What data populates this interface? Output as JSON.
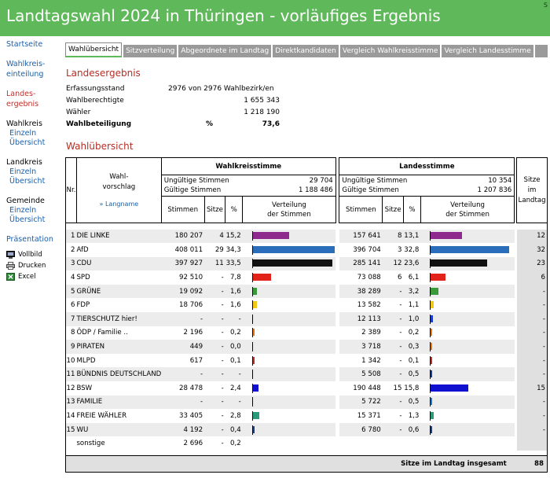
{
  "header": {
    "title": "Landtagswahl 2024 in Thüringen - vorläufiges Ergebnis",
    "corner": "S"
  },
  "sidebar": {
    "startseite": "Startseite",
    "wahlkreiseinteilung": [
      "Wahlkreis-",
      "einteilung"
    ],
    "landesergebnis": [
      "Landes-",
      "ergebnis"
    ],
    "wahlkreis": {
      "title": "Wahlkreis",
      "sub1": "Einzeln",
      "sub2": "Übersicht"
    },
    "landkreis": {
      "title": "Landkreis",
      "sub1": "Einzeln",
      "sub2": "Übersicht"
    },
    "gemeinde": {
      "title": "Gemeinde",
      "sub1": "Einzeln",
      "sub2": "Übersicht"
    },
    "praesentation": "Präsentation",
    "tools": [
      {
        "label": "Vollbild",
        "icon": "monitor-icon"
      },
      {
        "label": "Drucken",
        "icon": "printer-icon"
      },
      {
        "label": "Excel",
        "icon": "excel-icon"
      }
    ]
  },
  "tabs": [
    "Wahlübersicht",
    "Sitzverteilung",
    "Abgeordnete im Landtag",
    "Direktkandidaten",
    "Vergleich Wahlkreisstimme",
    "Vergleich Landesstimme"
  ],
  "landesergebnis": {
    "title": "Landesergebnis",
    "erfassungsstand_label": "Erfassungsstand",
    "erfassungsstand_value": "2976 von 2976 Wahlbezirk/en",
    "wahlberechtigte_label": "Wahlberechtigte",
    "wahlberechtigte_value": "1 655 343",
    "waehler_label": "Wähler",
    "waehler_value": "1 218 190",
    "wahlbeteiligung_label": "Wahlbeteiligung",
    "wahlbeteiligung_value": "73,6",
    "wahlbeteiligung_unit": "%"
  },
  "uebersicht": {
    "title": "Wahlübersicht",
    "col_nr": "Nr.",
    "col_vorschlag": [
      "Wahl-",
      "vorschlag"
    ],
    "langname_link": "» Langname",
    "wks_title": "Wahlkreisstimme",
    "ls_title": "Landesstimme",
    "ungueltig_label": "Ungültige Stimmen",
    "gueltig_label": "Gültige Stimmen",
    "wks_ungueltig": "29 704",
    "wks_gueltig": "1 188 486",
    "ls_ungueltig": "10 354",
    "ls_gueltig": "1 207 836",
    "col_stimmen": "Stimmen",
    "col_sitze": "Sitze",
    "col_pct": "%",
    "col_verteilung": [
      "Verteilung",
      "der Stimmen"
    ],
    "col_landtag": [
      "Sitze",
      "im",
      "Landtag"
    ],
    "footer_label": "Sitze im Landtag insgesamt",
    "footer_total": "88"
  },
  "colors": {
    "header": "#5fb85a",
    "section_title": "#b42e25",
    "link": "#1a5fa8"
  },
  "chart_data": {
    "type": "table",
    "columns": [
      "Nr.",
      "Wahlvorschlag",
      "WK Stimmen",
      "WK Sitze",
      "WK %",
      "LS Stimmen",
      "LS Sitze",
      "LS %",
      "Sitze im Landtag"
    ],
    "rows": [
      {
        "nr": "1",
        "name": "DIE LINKE",
        "wk_stimmen": "180 207",
        "wk_sitze": "4",
        "wk_pct": "15,2",
        "ls_stimmen": "157 641",
        "ls_sitze": "8",
        "ls_pct": "13,1",
        "landtag": "12",
        "color": "#8e2a8e",
        "wk_share": 15.2,
        "ls_share": 13.1
      },
      {
        "nr": "2",
        "name": "AfD",
        "wk_stimmen": "408 011",
        "wk_sitze": "29",
        "wk_pct": "34,3",
        "ls_stimmen": "396 704",
        "ls_sitze": "3",
        "ls_pct": "32,8",
        "landtag": "32",
        "color": "#2a6ebb",
        "wk_share": 34.3,
        "ls_share": 32.8
      },
      {
        "nr": "3",
        "name": "CDU",
        "wk_stimmen": "397 927",
        "wk_sitze": "11",
        "wk_pct": "33,5",
        "ls_stimmen": "285 141",
        "ls_sitze": "12",
        "ls_pct": "23,6",
        "landtag": "23",
        "color": "#111111",
        "wk_share": 33.5,
        "ls_share": 23.6
      },
      {
        "nr": "4",
        "name": "SPD",
        "wk_stimmen": "92 510",
        "wk_sitze": "-",
        "wk_pct": "7,8",
        "ls_stimmen": "73 088",
        "ls_sitze": "6",
        "ls_pct": "6,1",
        "landtag": "6",
        "color": "#e2231a",
        "wk_share": 7.8,
        "ls_share": 6.1
      },
      {
        "nr": "5",
        "name": "GRÜNE",
        "wk_stimmen": "19 092",
        "wk_sitze": "-",
        "wk_pct": "1,6",
        "ls_stimmen": "38 289",
        "ls_sitze": "-",
        "ls_pct": "3,2",
        "landtag": "-",
        "color": "#3a9a3a",
        "wk_share": 1.6,
        "ls_share": 3.2
      },
      {
        "nr": "6",
        "name": "FDP",
        "wk_stimmen": "18 706",
        "wk_sitze": "-",
        "wk_pct": "1,6",
        "ls_stimmen": "13 582",
        "ls_sitze": "-",
        "ls_pct": "1,1",
        "landtag": "-",
        "color": "#f2c81a",
        "wk_share": 1.6,
        "ls_share": 1.1
      },
      {
        "nr": "7",
        "name": "TIERSCHUTZ hier!",
        "wk_stimmen": "-",
        "wk_sitze": "-",
        "wk_pct": "-",
        "ls_stimmen": "12 113",
        "ls_sitze": "-",
        "ls_pct": "1,0",
        "landtag": "-",
        "color": "#1a3fcc",
        "wk_share": 0,
        "ls_share": 1.0
      },
      {
        "nr": "8",
        "name": "ÖDP / Familie ..",
        "wk_stimmen": "2 196",
        "wk_sitze": "-",
        "wk_pct": "0,2",
        "ls_stimmen": "2 389",
        "ls_sitze": "-",
        "ls_pct": "0,2",
        "landtag": "-",
        "color": "#e07a1a",
        "wk_share": 0.2,
        "ls_share": 0.2
      },
      {
        "nr": "9",
        "name": "PIRATEN",
        "wk_stimmen": "449",
        "wk_sitze": "-",
        "wk_pct": "0,0",
        "ls_stimmen": "3 718",
        "ls_sitze": "-",
        "ls_pct": "0,3",
        "landtag": "-",
        "color": "#e07a1a",
        "wk_share": 0.0,
        "ls_share": 0.3
      },
      {
        "nr": "10",
        "name": "MLPD",
        "wk_stimmen": "617",
        "wk_sitze": "-",
        "wk_pct": "0,1",
        "ls_stimmen": "1 342",
        "ls_sitze": "-",
        "ls_pct": "0,1",
        "landtag": "-",
        "color": "#c0302a",
        "wk_share": 0.1,
        "ls_share": 0.1
      },
      {
        "nr": "11",
        "name": "BÜNDNIS DEUTSCHLAND",
        "wk_stimmen": "-",
        "wk_sitze": "-",
        "wk_pct": "-",
        "ls_stimmen": "5 508",
        "ls_sitze": "-",
        "ls_pct": "0,5",
        "landtag": "-",
        "color": "#1a3f8a",
        "wk_share": 0,
        "ls_share": 0.5
      },
      {
        "nr": "12",
        "name": "BSW",
        "wk_stimmen": "28 478",
        "wk_sitze": "-",
        "wk_pct": "2,4",
        "ls_stimmen": "190 448",
        "ls_sitze": "15",
        "ls_pct": "15,8",
        "landtag": "15",
        "color": "#1010d0",
        "wk_share": 2.4,
        "ls_share": 15.8
      },
      {
        "nr": "13",
        "name": "FAMILIE",
        "wk_stimmen": "-",
        "wk_sitze": "-",
        "wk_pct": "-",
        "ls_stimmen": "5 722",
        "ls_sitze": "-",
        "ls_pct": "0,5",
        "landtag": "-",
        "color": "#1a7acc",
        "wk_share": 0,
        "ls_share": 0.5
      },
      {
        "nr": "14",
        "name": "FREIE WÄHLER",
        "wk_stimmen": "33 405",
        "wk_sitze": "-",
        "wk_pct": "2,8",
        "ls_stimmen": "15 371",
        "ls_sitze": "-",
        "ls_pct": "1,3",
        "landtag": "-",
        "color": "#2a9a7a",
        "wk_share": 2.8,
        "ls_share": 1.3
      },
      {
        "nr": "15",
        "name": "WU",
        "wk_stimmen": "4 192",
        "wk_sitze": "-",
        "wk_pct": "0,4",
        "ls_stimmen": "6 780",
        "ls_sitze": "-",
        "ls_pct": "0,6",
        "landtag": "-",
        "color": "#1a3f8a",
        "wk_share": 0.4,
        "ls_share": 0.6
      },
      {
        "nr": "",
        "name": "sonstige",
        "wk_stimmen": "2 696",
        "wk_sitze": "-",
        "wk_pct": "0,2",
        "ls_stimmen": "",
        "ls_sitze": "",
        "ls_pct": "",
        "landtag": "",
        "color": "",
        "wk_share": 0,
        "ls_share": 0
      }
    ],
    "bar_max_share": 34.3
  }
}
